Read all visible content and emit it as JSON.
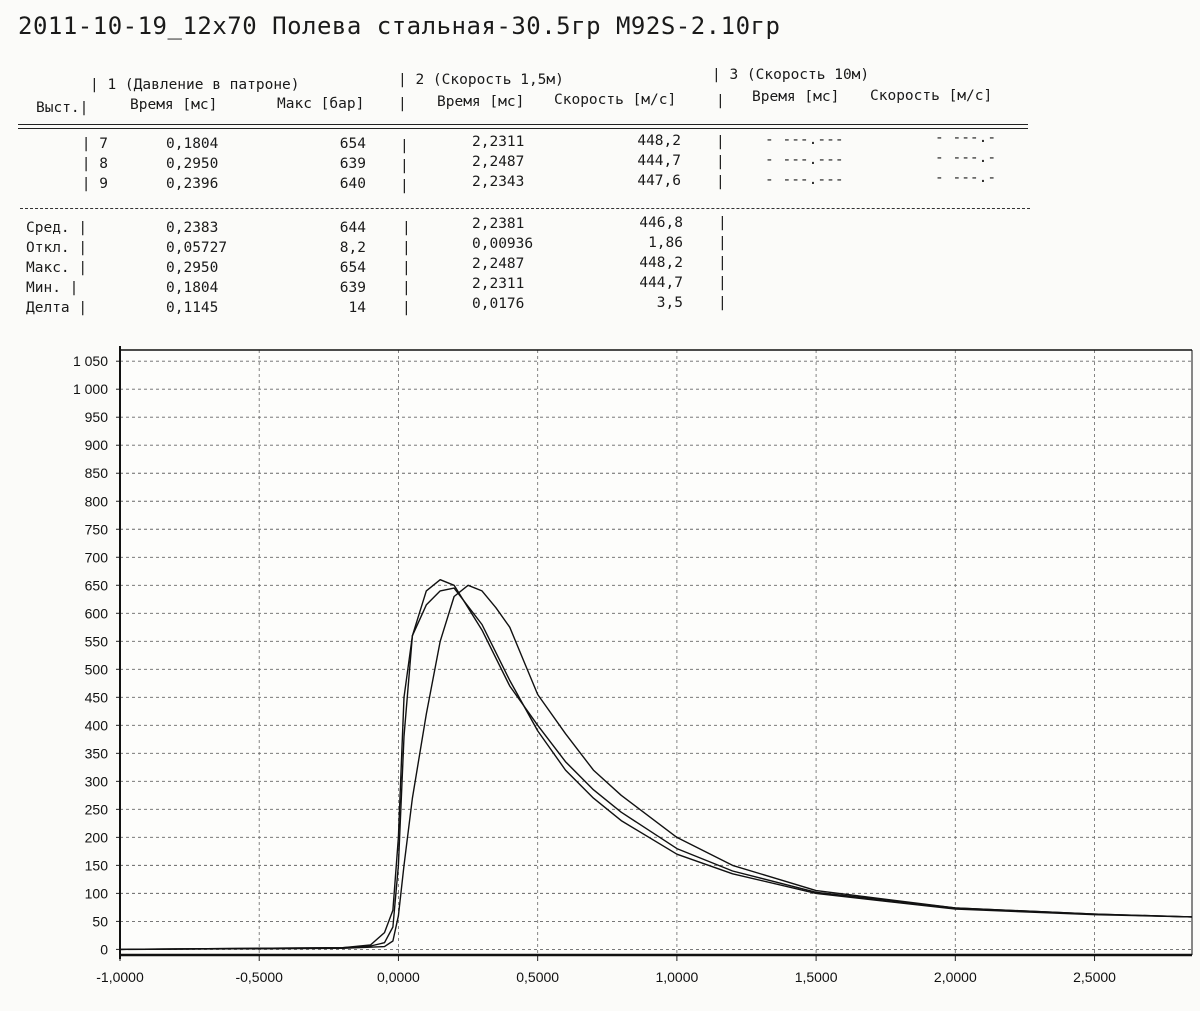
{
  "title": "2011-10-19_12x70 Полева стальная-30.5гр M92S-2.10гр",
  "report": {
    "group_headers": [
      "| 1 (Давление в патроне)",
      "| 2 (Скорость 1,5м)",
      "| 3 (Скорость 10м)"
    ],
    "column_headers": [
      "Выст.|",
      "Время [мс]",
      "Макс [бар]",
      "|",
      "Время [мс]",
      "Скорость [м/с]",
      "|",
      "Время [мс]",
      "Скорость [м/с]"
    ],
    "shots": [
      {
        "shot": "7 |",
        "t1": "0,1804",
        "pmax": "654",
        "sep1": "|",
        "t2": "2,2311",
        "v2": "448,2",
        "sep2": "|",
        "t3": "- ---.---",
        "v3": "- ---.-"
      },
      {
        "shot": "8 |",
        "t1": "0,2950",
        "pmax": "639",
        "sep1": "|",
        "t2": "2,2487",
        "v2": "444,7",
        "sep2": "|",
        "t3": "- ---.---",
        "v3": "- ---.-"
      },
      {
        "shot": "9 |",
        "t1": "0,2396",
        "pmax": "640",
        "sep1": "|",
        "t2": "2,2343",
        "v2": "447,6",
        "sep2": "|",
        "t3": "- ---.---",
        "v3": "- ---.-"
      }
    ],
    "stats": [
      {
        "label": "Сред. |",
        "t1": "0,2383",
        "pmax": "644",
        "sep1": "|",
        "t2": "2,2381",
        "v2": "446,8",
        "sep2": "|"
      },
      {
        "label": "Откл. |",
        "t1": "0,05727",
        "pmax": "8,2",
        "sep1": "|",
        "t2": "0,00936",
        "v2": "1,86",
        "sep2": "|"
      },
      {
        "label": "Макс. |",
        "t1": "0,2950",
        "pmax": "654",
        "sep1": "|",
        "t2": "2,2487",
        "v2": "448,2",
        "sep2": "|"
      },
      {
        "label": "Мин. |",
        "t1": "0,1804",
        "pmax": "639",
        "sep1": "|",
        "t2": "2,2311",
        "v2": "444,7",
        "sep2": "|"
      },
      {
        "label": "Делта |",
        "t1": "0,1145",
        "pmax": "14",
        "sep1": "|",
        "t2": "0,0176",
        "v2": "3,5",
        "sep2": "|"
      }
    ]
  },
  "chart_data": {
    "type": "line",
    "title": "",
    "xlabel": "",
    "ylabel": "",
    "xlim": [
      -1.0,
      2.85
    ],
    "ylim": [
      -10,
      1070
    ],
    "grid": true,
    "x_ticks": [
      -1.0,
      -0.5,
      0.0,
      0.5,
      1.0,
      1.5,
      2.0,
      2.5
    ],
    "x_tick_labels": [
      "-1,0000",
      "-0,5000",
      "0,0000",
      "0,5000",
      "1,0000",
      "1,5000",
      "2,0000",
      "2,5000"
    ],
    "y_ticks": [
      0,
      50,
      100,
      150,
      200,
      250,
      300,
      350,
      400,
      450,
      500,
      550,
      600,
      650,
      700,
      750,
      800,
      850,
      900,
      950,
      1000,
      1050
    ],
    "y_tick_labels": [
      "0",
      "50",
      "100",
      "150",
      "200",
      "250",
      "300",
      "350",
      "400",
      "450",
      "500",
      "550",
      "600",
      "650",
      "700",
      "750",
      "800",
      "850",
      "900",
      "950",
      "1 000",
      "1 050"
    ],
    "series": [
      {
        "x": [
          -1.0,
          -0.2,
          -0.1,
          -0.05,
          -0.02,
          0.0,
          0.02,
          0.05,
          0.1,
          0.15,
          0.2,
          0.3,
          0.4,
          0.5,
          0.6,
          0.7,
          0.8,
          1.0,
          1.2,
          1.5,
          2.0,
          2.5,
          2.85
        ],
        "y": [
          0,
          3,
          8,
          30,
          70,
          200,
          450,
          560,
          615,
          640,
          645,
          580,
          480,
          390,
          320,
          270,
          230,
          170,
          135,
          100,
          72,
          62,
          58
        ]
      },
      {
        "x": [
          -1.0,
          -0.2,
          -0.1,
          -0.05,
          -0.02,
          0.0,
          0.02,
          0.05,
          0.1,
          0.15,
          0.2,
          0.3,
          0.4,
          0.5,
          0.6,
          0.7,
          0.8,
          1.0,
          1.2,
          1.5,
          2.0,
          2.5,
          2.85
        ],
        "y": [
          0,
          3,
          6,
          12,
          40,
          150,
          380,
          560,
          640,
          660,
          650,
          570,
          470,
          400,
          335,
          285,
          245,
          180,
          140,
          102,
          74,
          63,
          58
        ]
      },
      {
        "x": [
          -1.0,
          -0.2,
          -0.05,
          -0.02,
          0.0,
          0.02,
          0.05,
          0.1,
          0.15,
          0.2,
          0.25,
          0.3,
          0.35,
          0.4,
          0.45,
          0.5,
          0.6,
          0.7,
          0.8,
          1.0,
          1.2,
          1.5,
          2.0,
          2.5,
          2.85
        ],
        "y": [
          0,
          2,
          5,
          15,
          60,
          150,
          270,
          420,
          550,
          630,
          650,
          640,
          610,
          575,
          515,
          455,
          385,
          320,
          275,
          200,
          150,
          105,
          74,
          63,
          58
        ]
      }
    ]
  }
}
